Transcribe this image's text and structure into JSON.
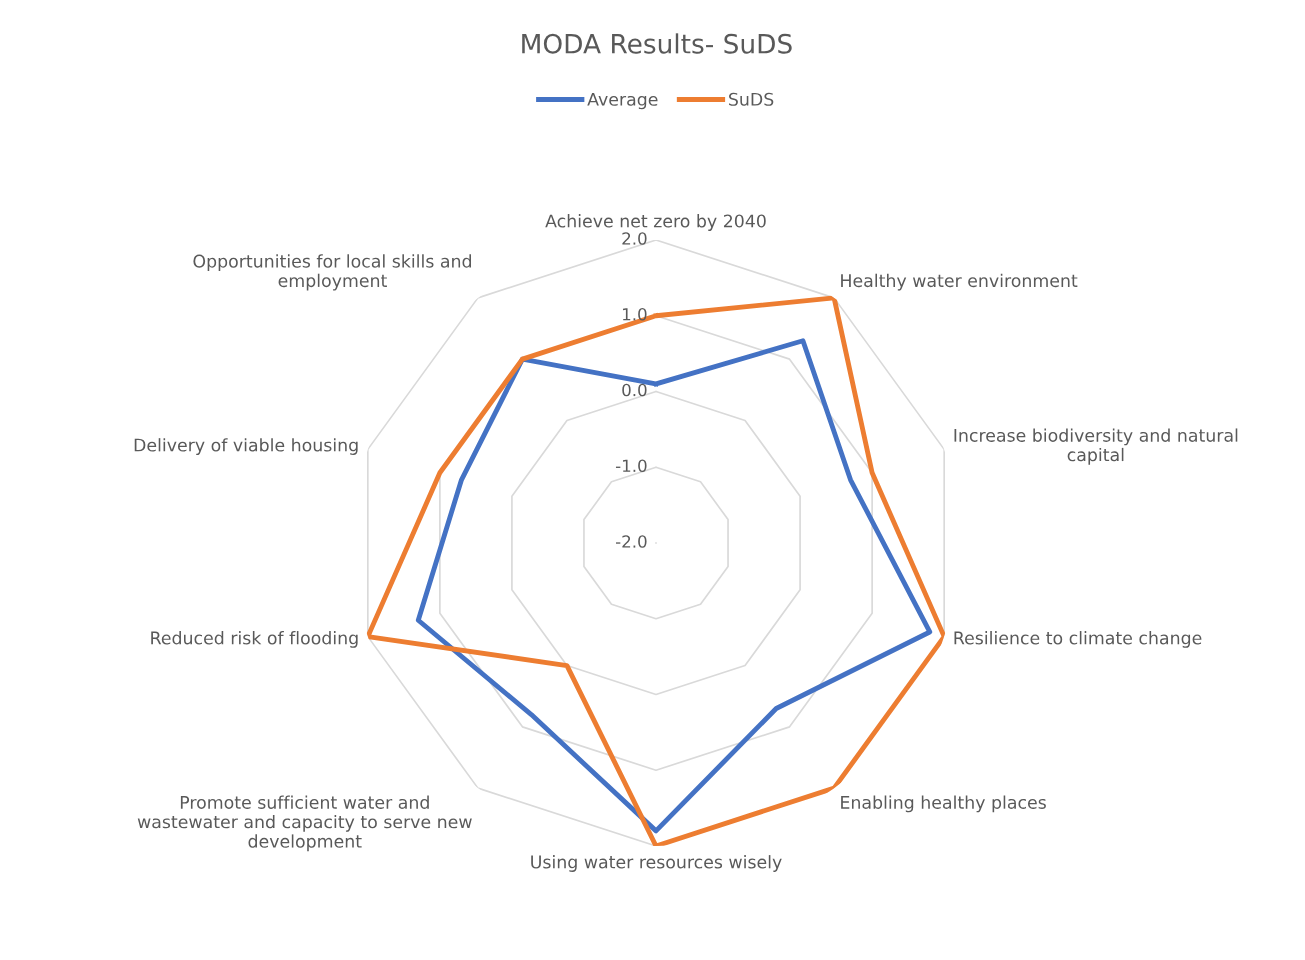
{
  "chart_data": {
    "type": "radar",
    "title": "MODA Results- SuDS",
    "categories": [
      "Achieve net zero by 2040",
      "Healthy water environment",
      "Increase biodiversity and natural capital",
      "Resilience to climate change",
      "Enabling healthy places",
      "Using water resources wisely",
      "Promote sufficient water and wastewater and capacity to serve new development",
      "Reduced risk of flooding",
      "Delivery of viable housing",
      "Opportunities for local skills and employment"
    ],
    "series": [
      {
        "name": "Average",
        "color": "#4472c4",
        "values": [
          0.1,
          1.3,
          0.7,
          1.8,
          0.7,
          1.8,
          0.8,
          1.3,
          0.7,
          1.0
        ]
      },
      {
        "name": "SuDS",
        "color": "#ed7d31",
        "values": [
          1.0,
          2.0,
          1.0,
          2.0,
          2.0,
          2.0,
          0.0,
          2.0,
          1.0,
          1.0
        ]
      }
    ],
    "ylim": [
      -2,
      2
    ],
    "yticks": [
      {
        "value": -2,
        "label": "-2.0"
      },
      {
        "value": -1,
        "label": "-1.0"
      },
      {
        "value": 0,
        "label": "0.0"
      },
      {
        "value": 1,
        "label": "1.0"
      },
      {
        "value": 2,
        "label": "2.0"
      }
    ],
    "grid": true,
    "legend": "top",
    "marker": "none",
    "line_style": "solid"
  }
}
